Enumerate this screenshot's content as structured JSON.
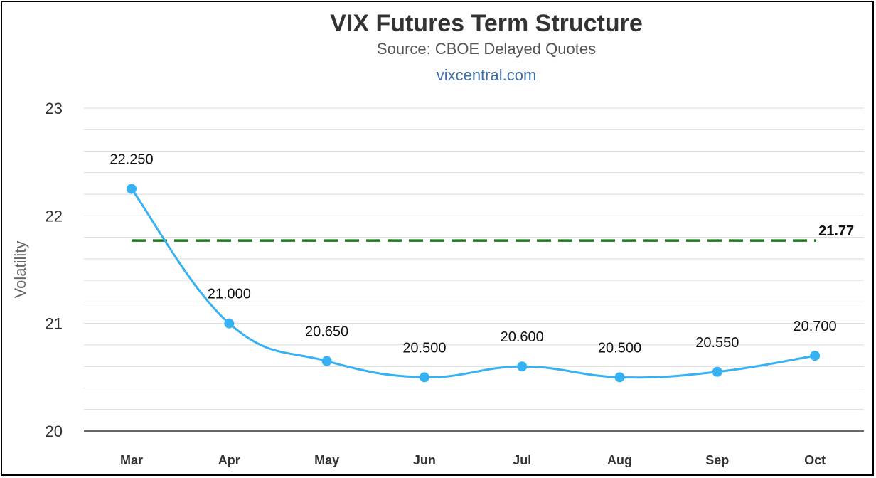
{
  "colors": {
    "line": "#35b1f4",
    "reference": "#1f7a1f",
    "grid": "#d9d9d9",
    "axis": "#333333",
    "credit": "#3d6fa8"
  },
  "chart_data": {
    "type": "line",
    "title": "VIX Futures Term Structure",
    "subtitle": "Source: CBOE Delayed Quotes",
    "credit": "vixcentral.com",
    "ylabel": "Volatility",
    "xlabel": "",
    "ylim": [
      20,
      23
    ],
    "yticks": [
      "20",
      "21",
      "22",
      "23"
    ],
    "minor_gridlines_per_unit": 5,
    "categories": [
      "Mar",
      "Apr",
      "May",
      "Jun",
      "Jul",
      "Aug",
      "Sep",
      "Oct"
    ],
    "series": [
      {
        "values": [
          22.25,
          21.0,
          20.65,
          20.5,
          20.6,
          20.5,
          20.55,
          20.7
        ],
        "labels": [
          "22.250",
          "21.000",
          "20.650",
          "20.500",
          "20.600",
          "20.500",
          "20.550",
          "20.700"
        ],
        "style": "smooth-line-with-markers"
      }
    ],
    "reference_line": {
      "value": 21.77,
      "label": "21.77",
      "style": "dashed"
    },
    "grid": true,
    "legend": "none"
  }
}
